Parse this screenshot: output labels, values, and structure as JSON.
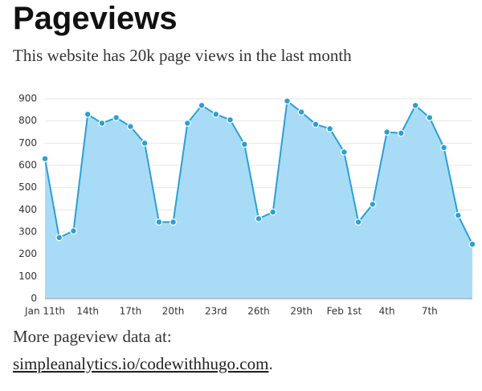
{
  "heading": "Pageviews",
  "intro": "This website has 20k page views in the last month",
  "more_text": "More pageview data at:",
  "link": "simpleanalytics.io/codewithhugo.com",
  "link_suffix": ".",
  "chart_data": {
    "type": "line",
    "categories": [
      "Jan 11th",
      null,
      null,
      "14th",
      null,
      null,
      "17th",
      null,
      null,
      "20th",
      null,
      null,
      "23rd",
      null,
      null,
      "26th",
      null,
      null,
      "29th",
      null,
      null,
      "Feb 1st",
      null,
      null,
      "4th",
      null,
      null,
      "7th",
      null,
      null,
      null
    ],
    "values": [
      630,
      275,
      305,
      830,
      790,
      815,
      775,
      700,
      345,
      345,
      790,
      870,
      830,
      805,
      695,
      360,
      390,
      890,
      840,
      785,
      765,
      660,
      345,
      425,
      750,
      745,
      870,
      815,
      680,
      375,
      245
    ],
    "color": "#2b9fd8",
    "fill": "#a8dcf6",
    "ylim": [
      0,
      900
    ],
    "yticks": [
      0,
      100,
      200,
      300,
      400,
      500,
      600,
      700,
      800,
      900
    ],
    "grid": true
  }
}
